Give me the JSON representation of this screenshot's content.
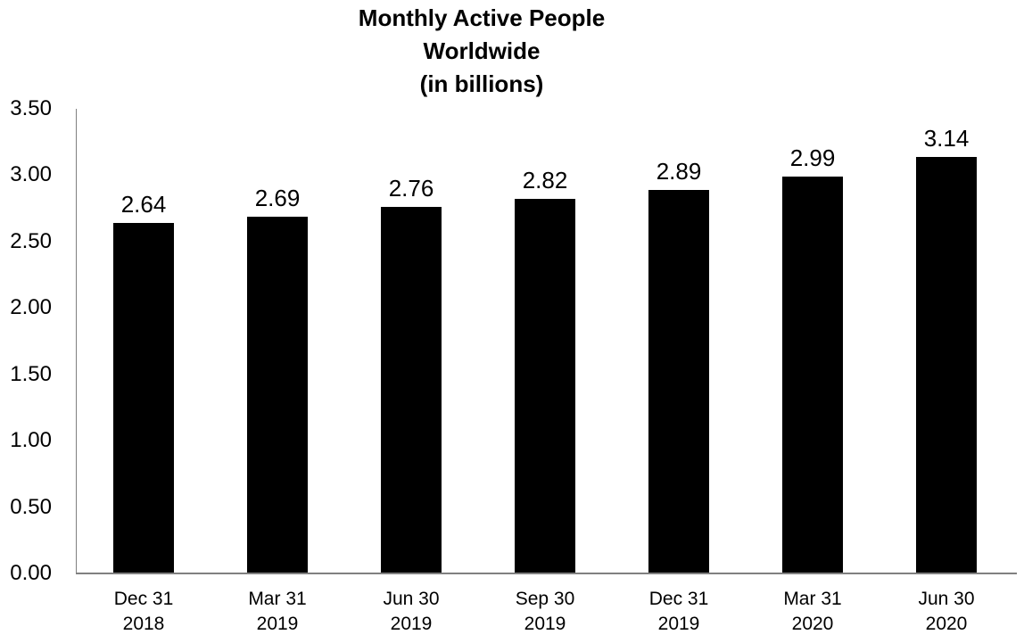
{
  "chart_data": {
    "type": "bar",
    "title": "Monthly Active People Worldwide (in billions)",
    "title_lines": [
      "Monthly Active People",
      "Worldwide",
      "(in billions)"
    ],
    "categories": [
      "Dec 31 2018",
      "Mar 31 2019",
      "Jun 30 2019",
      "Sep 30 2019",
      "Dec 31 2019",
      "Mar 31 2020",
      "Jun 30 2020"
    ],
    "category_lines": [
      [
        "Dec 31",
        "2018"
      ],
      [
        "Mar 31",
        "2019"
      ],
      [
        "Jun 30",
        "2019"
      ],
      [
        "Sep 30",
        "2019"
      ],
      [
        "Dec 31",
        "2019"
      ],
      [
        "Mar 31",
        "2020"
      ],
      [
        "Jun 30",
        "2020"
      ]
    ],
    "values": [
      2.64,
      2.69,
      2.76,
      2.82,
      2.89,
      2.99,
      3.14
    ],
    "value_labels": [
      "2.64",
      "2.69",
      "2.76",
      "2.82",
      "2.89",
      "2.99",
      "3.14"
    ],
    "y_tick_labels": [
      "0.00",
      "0.50",
      "1.00",
      "1.50",
      "2.00",
      "2.50",
      "3.00",
      "3.50"
    ],
    "xlabel": "",
    "ylabel": "",
    "ylim": [
      0,
      3.5
    ],
    "y_tick_step": 0.5,
    "grid": false,
    "legend": false,
    "bar_color": "#000000",
    "axis_color": "#808080",
    "text_color": "#000000",
    "background_color": "#ffffff"
  }
}
